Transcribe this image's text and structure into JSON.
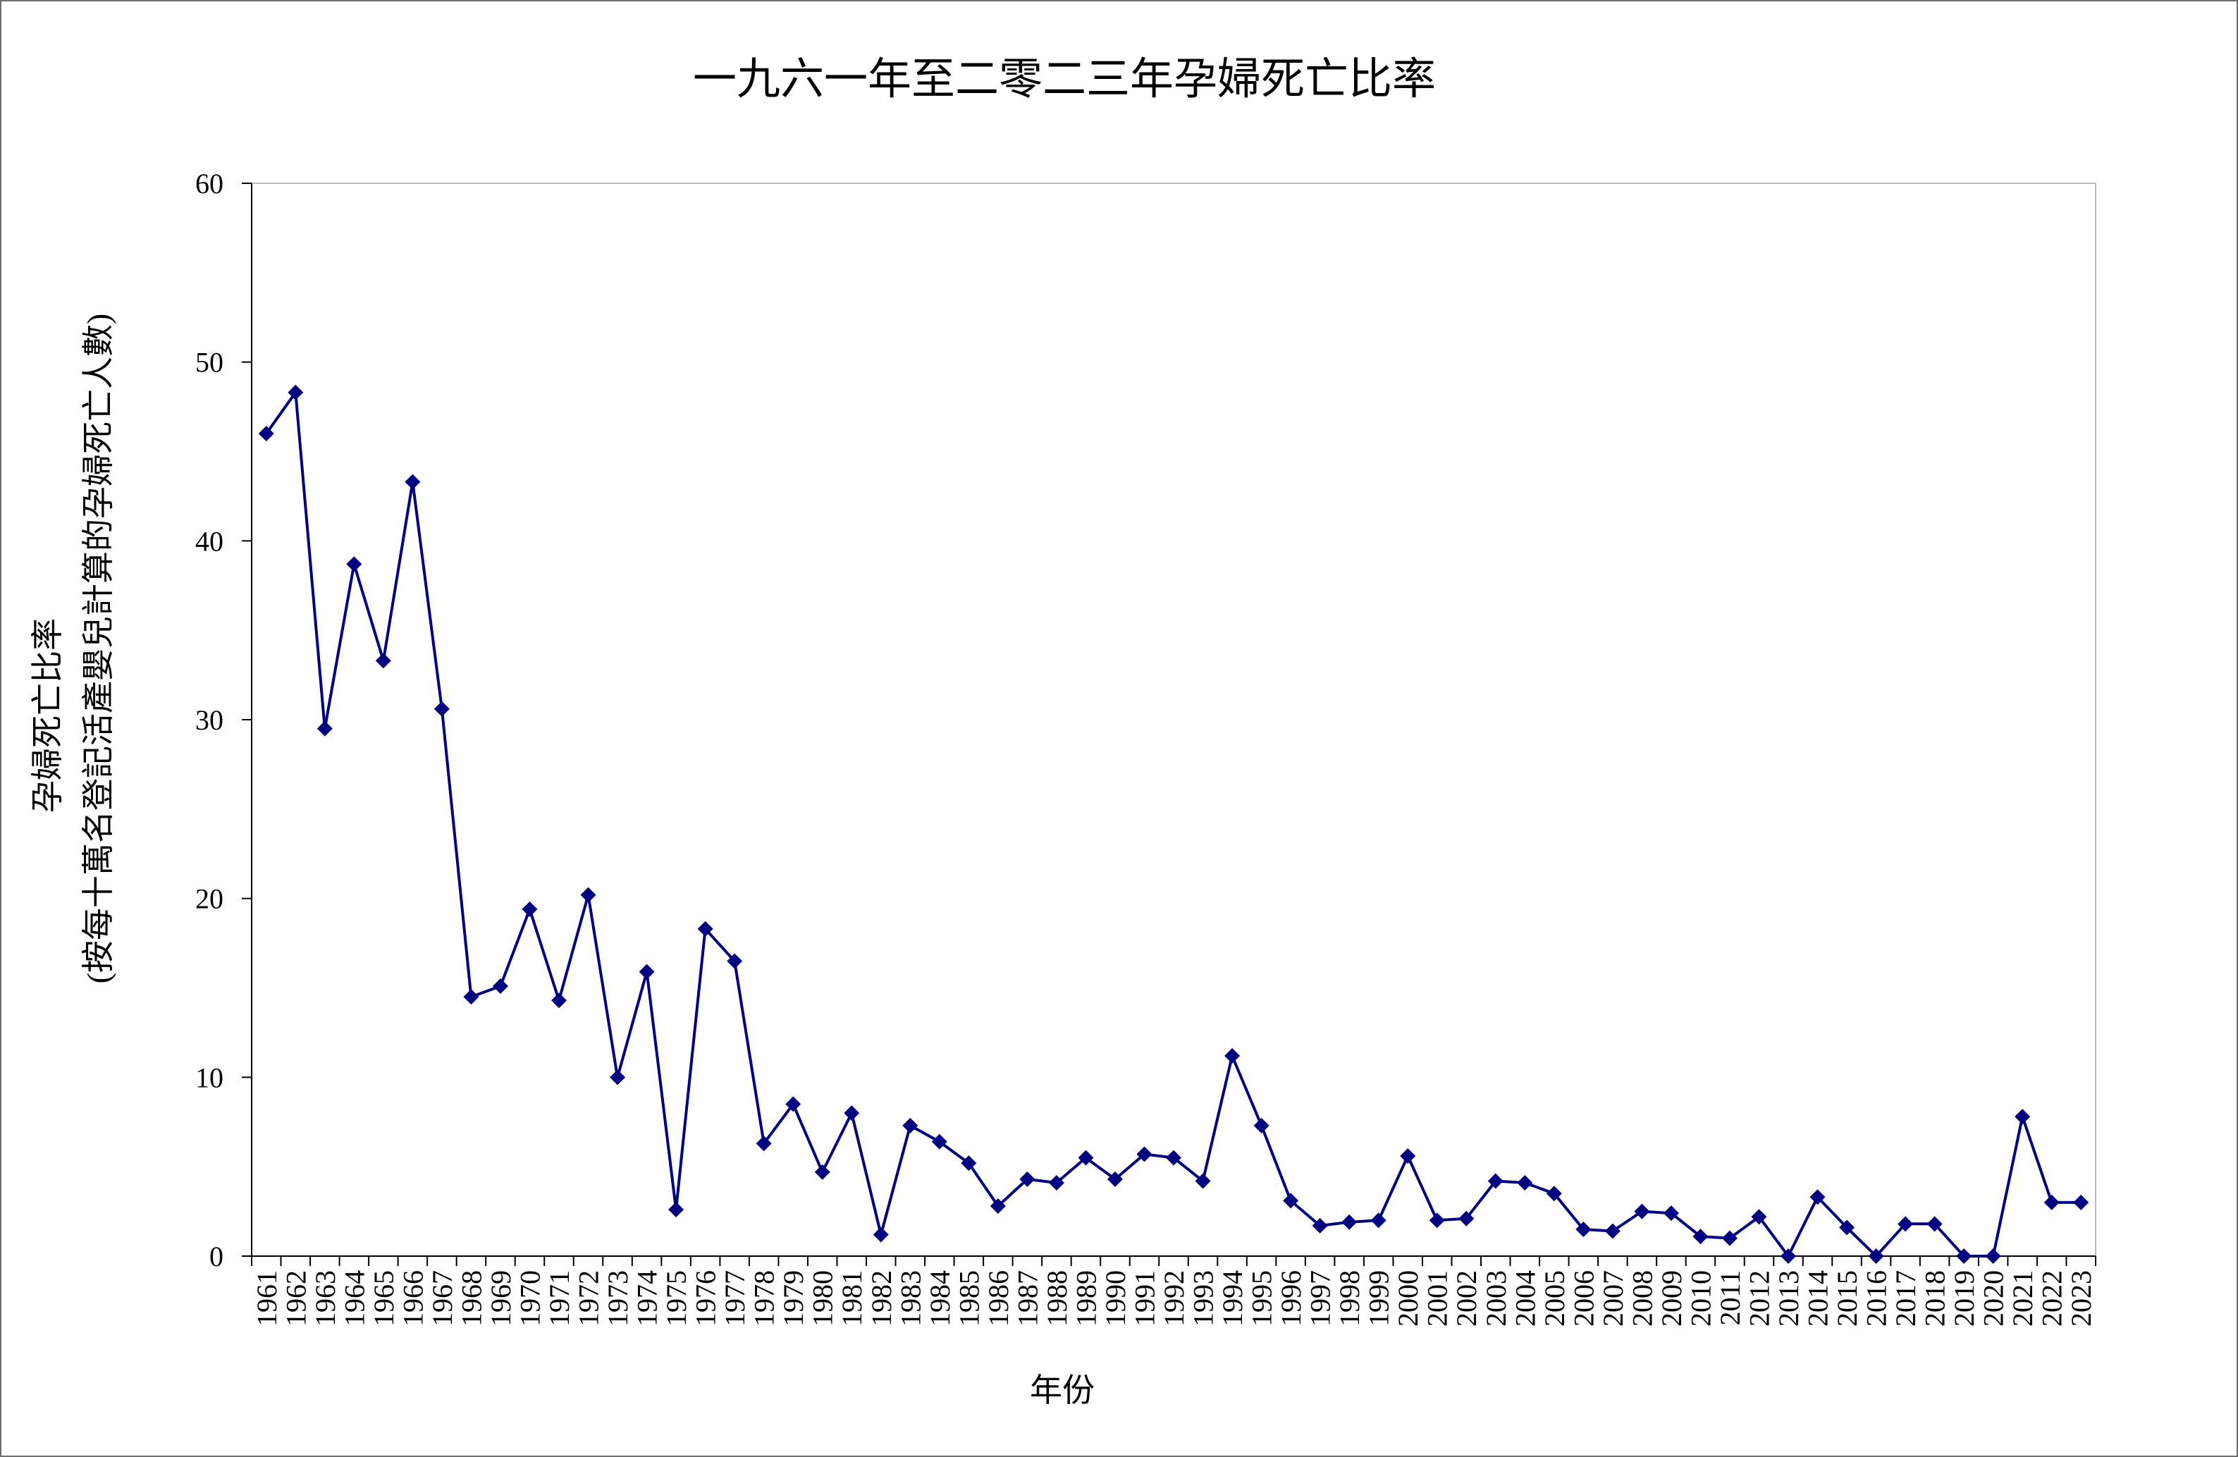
{
  "chart_data": {
    "type": "line",
    "title": "一九六一年至二零二三年孕婦死亡比率",
    "xlabel": "年份",
    "ylabel_line1": "孕婦死亡比率",
    "ylabel_line2": "(按每十萬名登記活產嬰兒計算的孕婦死亡人數)",
    "ylim": [
      0,
      60
    ],
    "yticks": [
      0,
      10,
      20,
      30,
      40,
      50,
      60
    ],
    "grid": false,
    "legend": "none",
    "colors": {
      "line": "#000080",
      "marker": "#000080",
      "plot_border": "#bbbbbb",
      "axis": "#000000"
    },
    "marker": "diamond",
    "x": [
      1961,
      1962,
      1963,
      1964,
      1965,
      1966,
      1967,
      1968,
      1969,
      1970,
      1971,
      1972,
      1973,
      1974,
      1975,
      1976,
      1977,
      1978,
      1979,
      1980,
      1981,
      1982,
      1983,
      1984,
      1985,
      1986,
      1987,
      1988,
      1989,
      1990,
      1991,
      1992,
      1993,
      1994,
      1995,
      1996,
      1997,
      1998,
      1999,
      2000,
      2001,
      2002,
      2003,
      2004,
      2005,
      2006,
      2007,
      2008,
      2009,
      2010,
      2011,
      2012,
      2013,
      2014,
      2015,
      2016,
      2017,
      2018,
      2019,
      2020,
      2021,
      2022,
      2023
    ],
    "values": [
      46.0,
      48.3,
      29.5,
      38.7,
      33.3,
      43.3,
      30.6,
      14.5,
      15.1,
      19.4,
      14.3,
      20.2,
      10.0,
      15.9,
      2.6,
      18.3,
      16.5,
      6.3,
      8.5,
      4.7,
      8.0,
      1.2,
      7.3,
      6.4,
      5.2,
      2.8,
      4.3,
      4.1,
      5.5,
      4.3,
      5.7,
      5.5,
      4.2,
      11.2,
      7.3,
      3.1,
      1.7,
      1.9,
      2.0,
      5.6,
      2.0,
      2.1,
      4.2,
      4.1,
      3.5,
      1.5,
      1.4,
      2.5,
      2.4,
      1.1,
      1.0,
      2.2,
      0.0,
      3.3,
      1.6,
      0.0,
      1.8,
      1.8,
      0.0,
      0.0,
      7.8,
      3.0,
      3.0
    ]
  }
}
